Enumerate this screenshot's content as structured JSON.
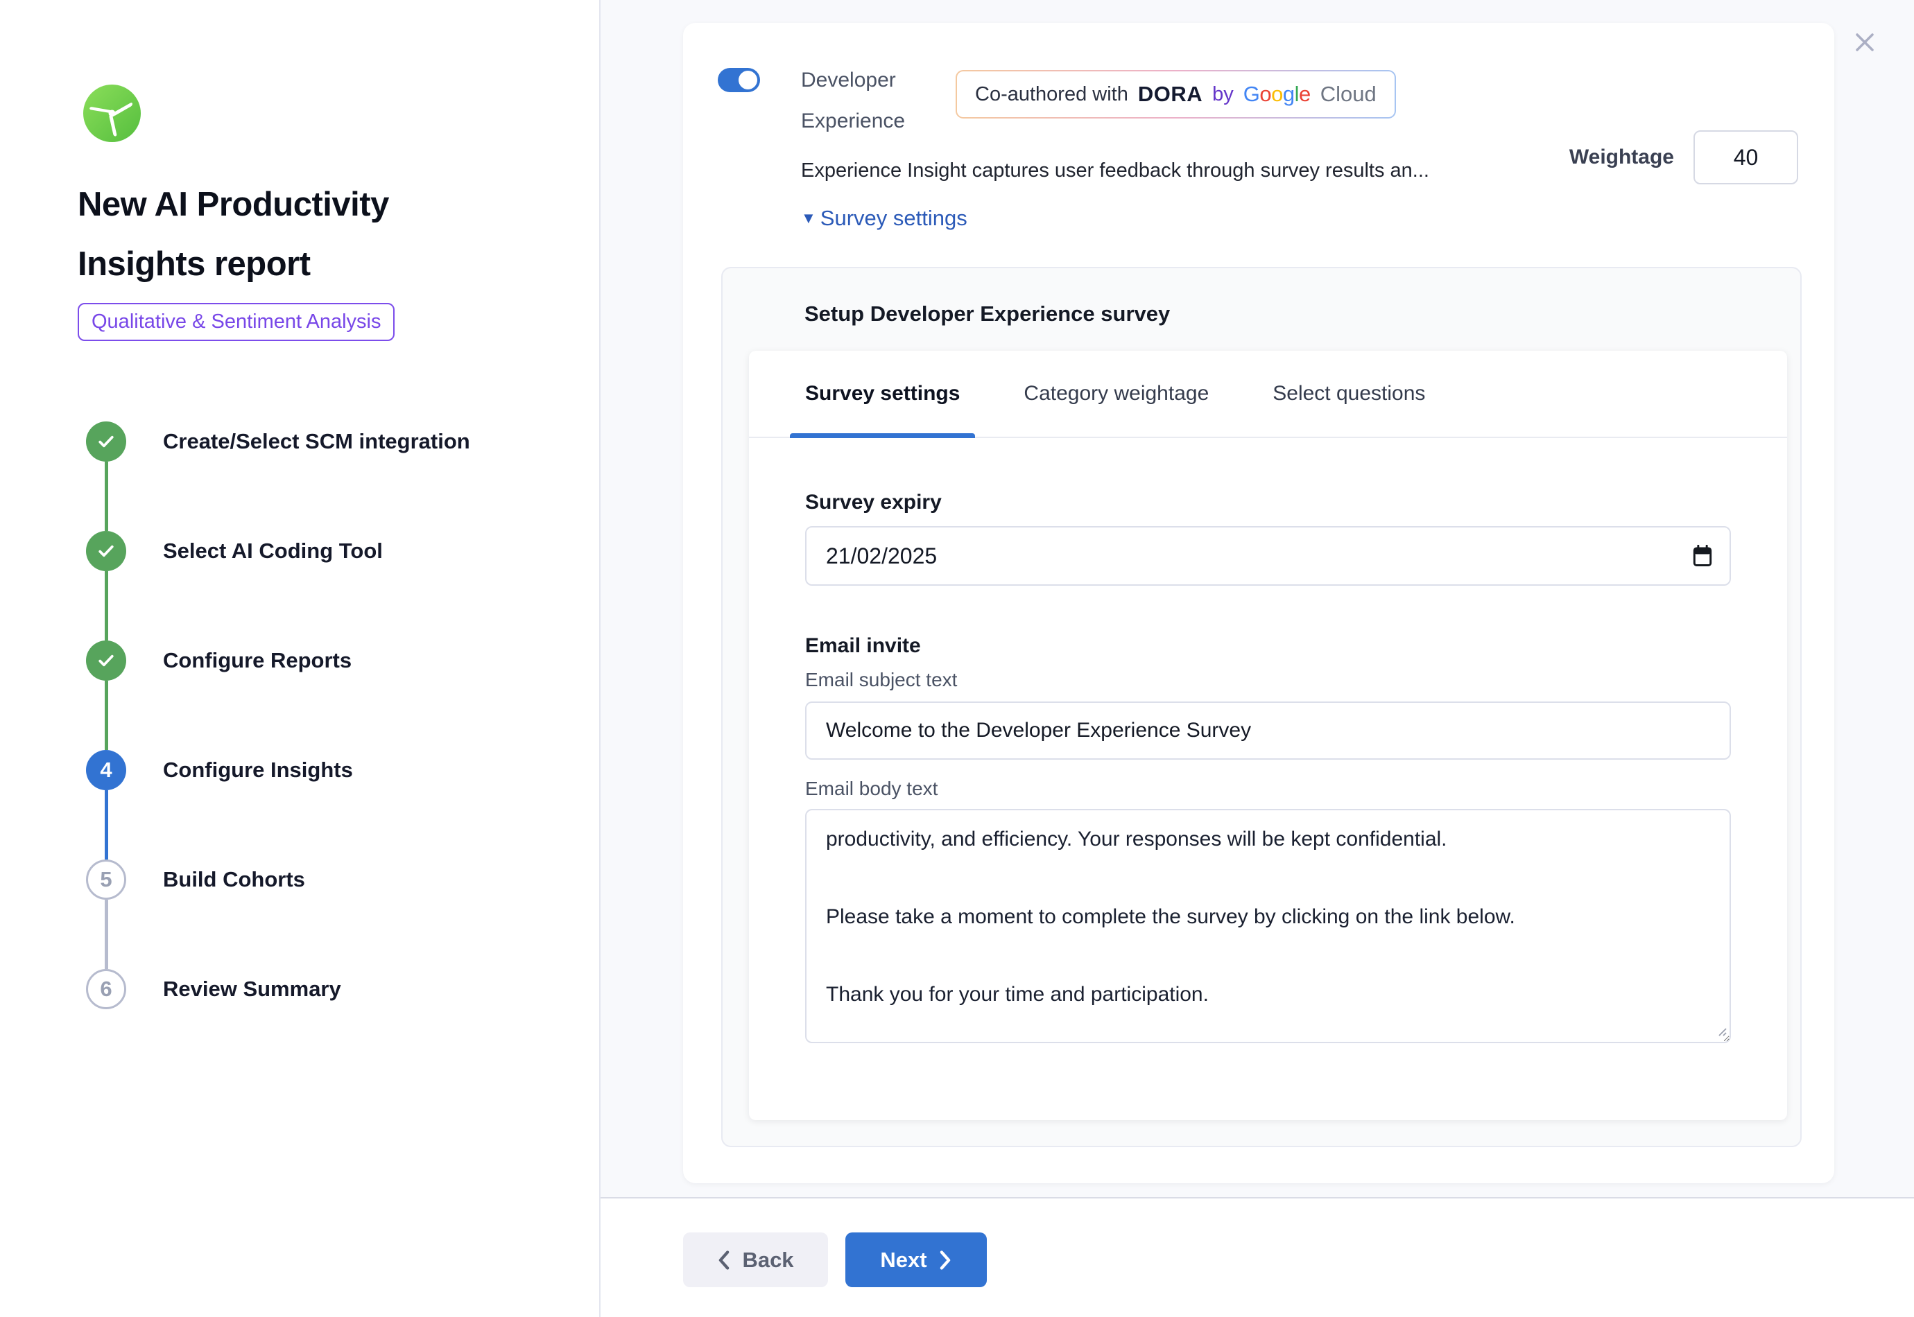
{
  "sidebar": {
    "title": "New AI Productivity Insights report",
    "badge": "Qualitative & Sentiment Analysis",
    "steps": [
      {
        "number": "1",
        "label": "Create/Select SCM integration",
        "state": "done"
      },
      {
        "number": "2",
        "label": "Select AI Coding Tool",
        "state": "done"
      },
      {
        "number": "3",
        "label": "Configure Reports",
        "state": "done"
      },
      {
        "number": "4",
        "label": "Configure Insights",
        "state": "active"
      },
      {
        "number": "5",
        "label": "Build Cohorts",
        "state": "pending"
      },
      {
        "number": "6",
        "label": "Review Summary",
        "state": "pending"
      }
    ]
  },
  "panel": {
    "toggle_on": "true",
    "insight_title": "Developer Experience",
    "coauthor_badge": {
      "prefix": "Co-authored with",
      "dora": "DORA",
      "by": "by",
      "google_letters": [
        {
          "ch": "G",
          "color": "#4285F4"
        },
        {
          "ch": "o",
          "color": "#EA4335"
        },
        {
          "ch": "o",
          "color": "#FBBC05"
        },
        {
          "ch": "g",
          "color": "#4285F4"
        },
        {
          "ch": "l",
          "color": "#34A853"
        },
        {
          "ch": "e",
          "color": "#EA4335"
        }
      ],
      "cloud": "Cloud"
    },
    "description": "Experience Insight captures user feedback through survey results an...",
    "weightage_label": "Weightage",
    "weightage_value": "40",
    "survey_settings_link": "Survey settings",
    "setup_card": {
      "title": "Setup Developer Experience survey",
      "tabs": [
        {
          "label": "Survey settings",
          "active": "true"
        },
        {
          "label": "Category weightage"
        },
        {
          "label": "Select questions"
        }
      ],
      "survey_expiry_label": "Survey expiry",
      "survey_expiry_value": "21/02/2025",
      "email_invite_label": "Email invite",
      "email_subject_label": "Email subject text",
      "email_subject_value": "Welcome to the Developer Experience Survey",
      "email_body_label": "Email body text",
      "email_body_value": "productivity, and efficiency. Your responses will be kept confidential.\n\nPlease take a moment to complete the survey by clicking on the link below.\n\nThank you for your time and participation."
    }
  },
  "footer": {
    "back_label": "Back",
    "next_label": "Next"
  },
  "colors": {
    "accent_blue": "#3273D2",
    "success_green": "#57A45C",
    "brand_purple": "#7C4DEB",
    "link_blue": "#2B5AB8",
    "page_bg": "#F8F9FC"
  }
}
